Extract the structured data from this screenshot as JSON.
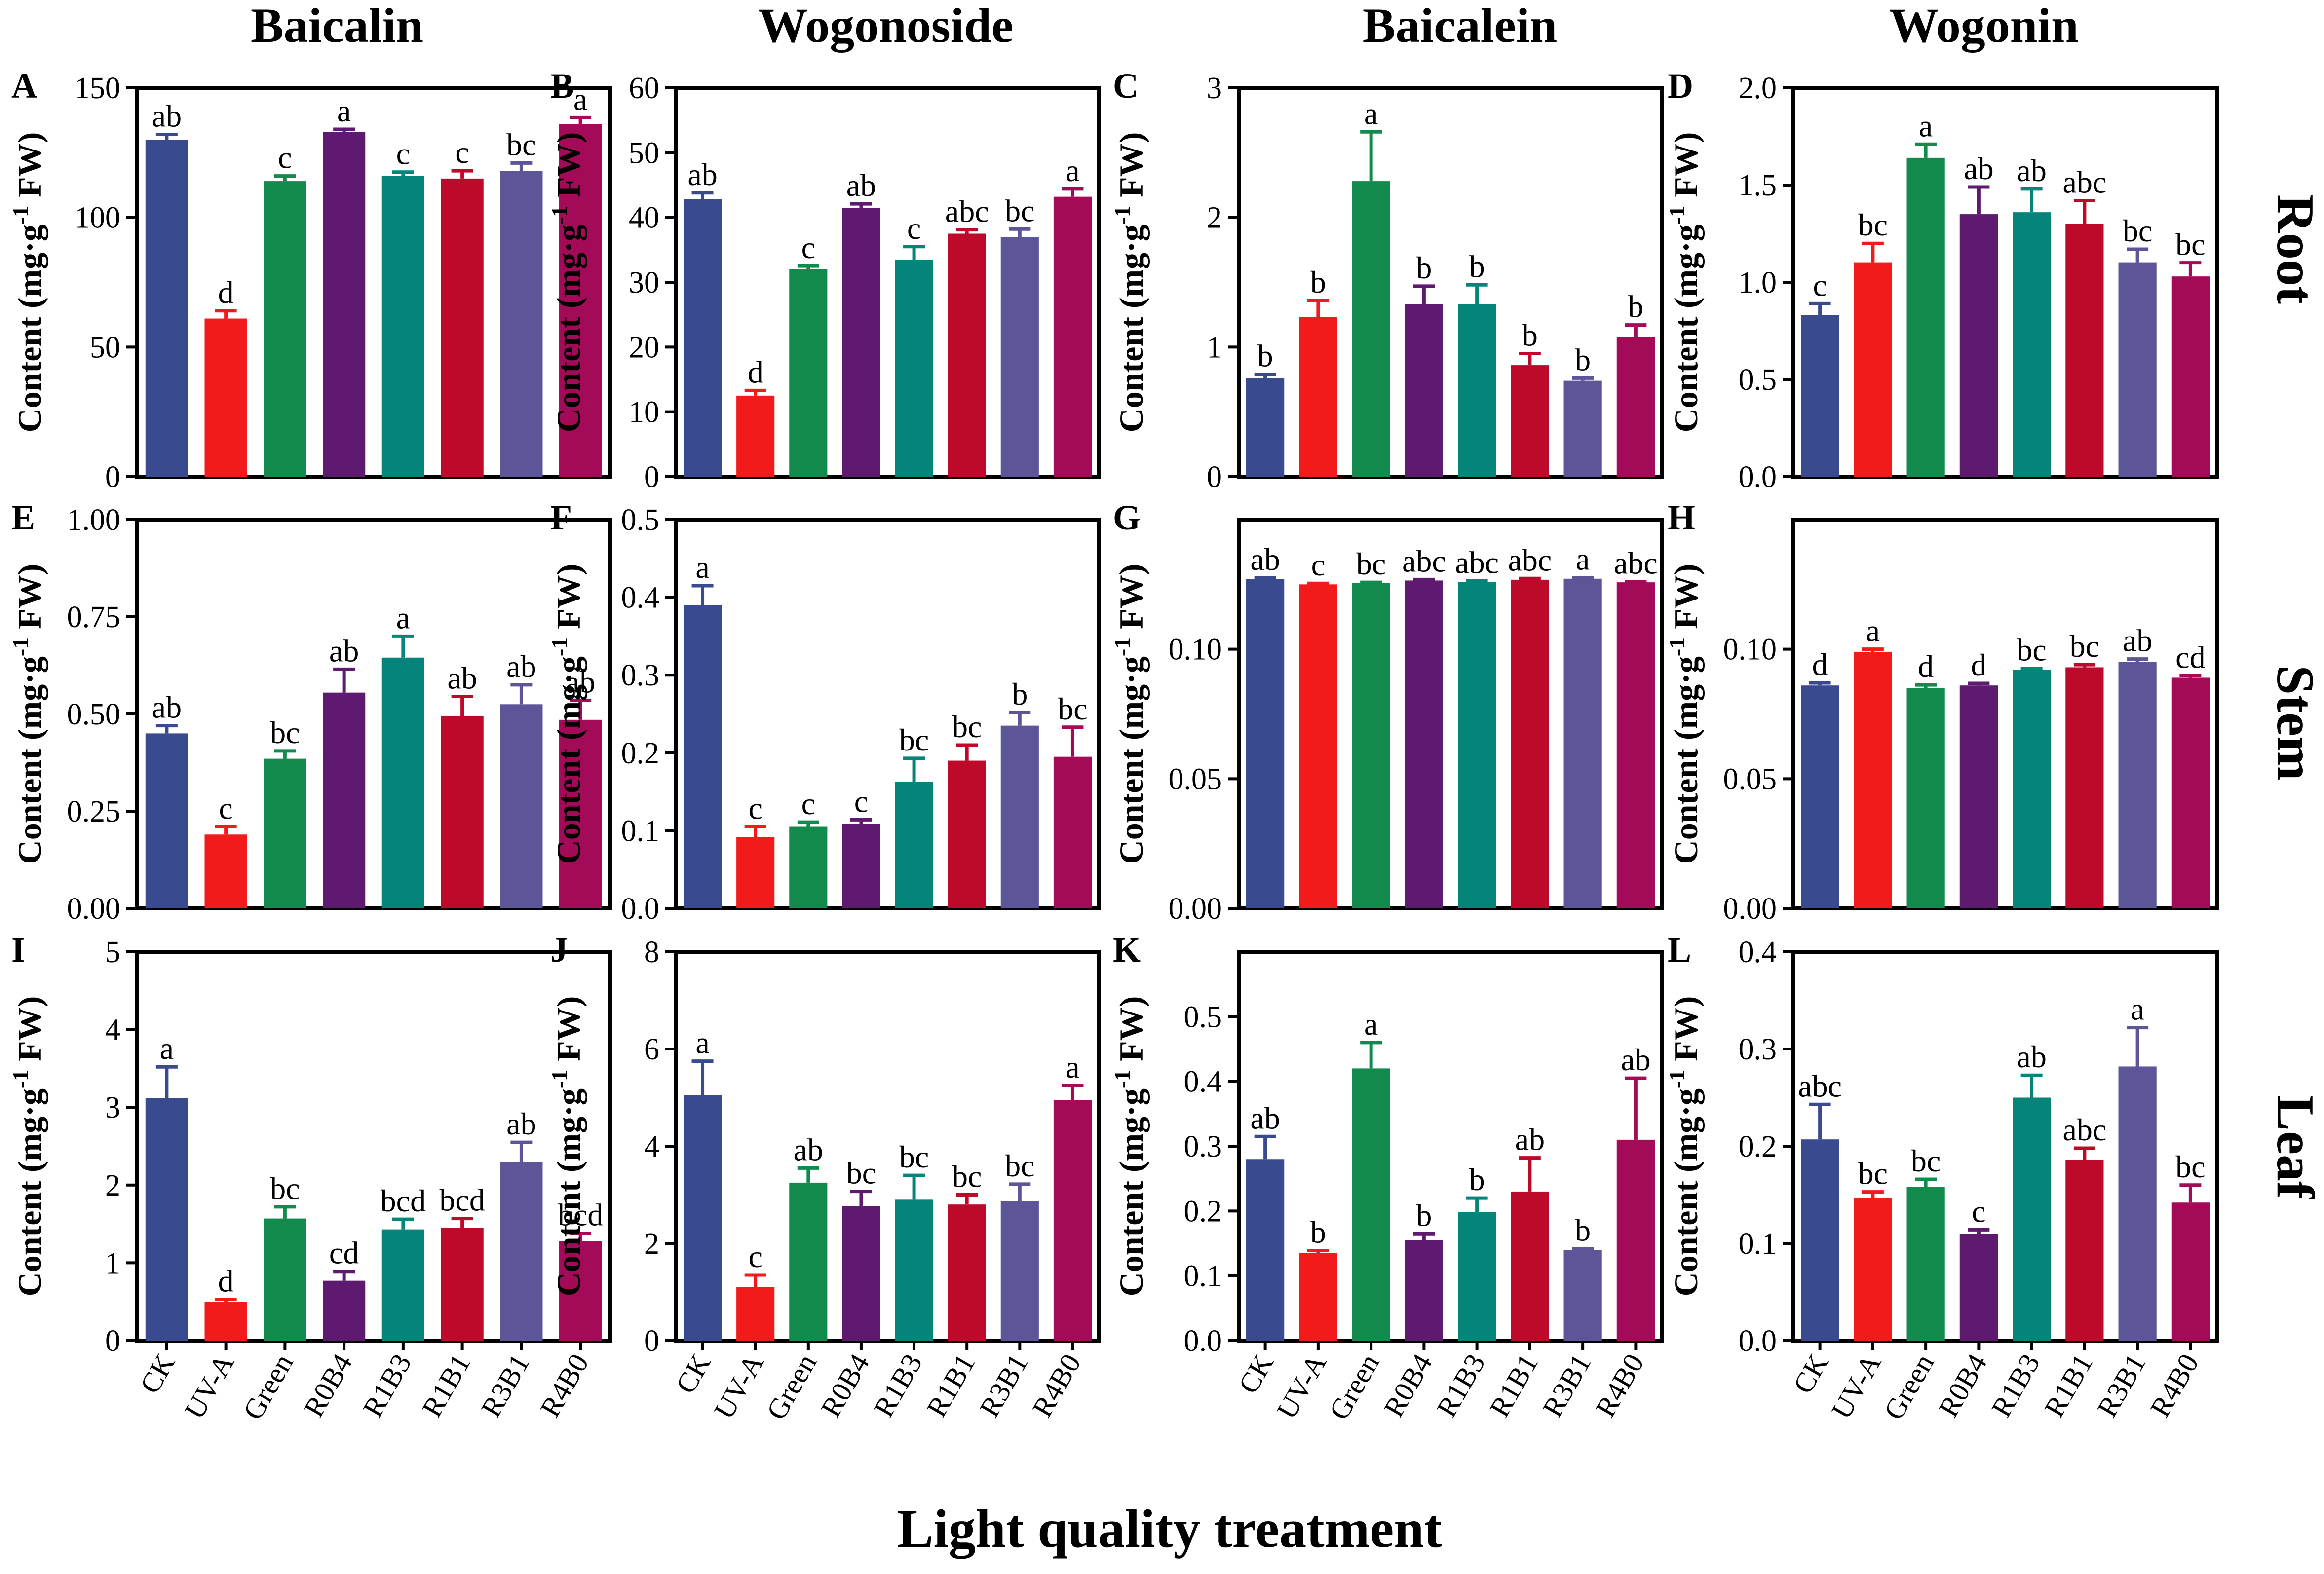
{
  "figure": {
    "x_axis_title": "Light quality treatment",
    "y_axis_label_main": "Content (mg·g",
    "y_axis_label_sup": "-1",
    "y_axis_label_end": " FW)",
    "columns": [
      "Baicalin",
      "Wogonoside",
      "Baicalein",
      "Wogonin"
    ],
    "rows": [
      "Root",
      "Stem",
      "Leaf"
    ]
  },
  "colors": {
    "CK": "#3a4a8f",
    "UV-A": "#f21a1a",
    "Green": "#128a4c",
    "R0B4": "#5e1a6e",
    "R1B3": "#05847a",
    "R1B1": "#be0a2a",
    "R3B1": "#5c5598",
    "R4B0": "#a30a58"
  },
  "chart_data": [
    {
      "type": "bar",
      "panel": "A",
      "title": "Baicalin",
      "row": "Root",
      "xlabel": "Light quality treatment",
      "ylabel": "Content (mg·g-1 FW)",
      "categories": [
        "CK",
        "UV-A",
        "Green",
        "R0B4",
        "R1B3",
        "R1B1",
        "R3B1",
        "R4B0"
      ],
      "values": [
        130,
        61,
        114,
        133,
        116,
        115,
        118,
        136
      ],
      "errors": [
        2,
        3,
        2,
        1,
        1.5,
        3,
        3,
        2.5
      ],
      "letters": [
        "ab",
        "d",
        "c",
        "a",
        "c",
        "c",
        "bc",
        "a"
      ],
      "ylim": [
        0,
        150
      ],
      "yticks": [
        "0",
        "50",
        "100",
        "150"
      ]
    },
    {
      "type": "bar",
      "panel": "B",
      "title": "Wogonoside",
      "row": "Root",
      "xlabel": "Light quality treatment",
      "ylabel": "Content (mg·g-1 FW)",
      "categories": [
        "CK",
        "UV-A",
        "Green",
        "R0B4",
        "R1B3",
        "R1B1",
        "R3B1",
        "R4B0"
      ],
      "values": [
        42.8,
        12.5,
        32,
        41.5,
        33.5,
        37.5,
        37,
        43.2
      ],
      "errors": [
        1,
        0.8,
        0.5,
        0.6,
        2,
        0.6,
        1.2,
        1.2
      ],
      "letters": [
        "ab",
        "d",
        "c",
        "ab",
        "c",
        "abc",
        "bc",
        "a"
      ],
      "ylim": [
        0,
        60
      ],
      "yticks": [
        "0",
        "10",
        "20",
        "30",
        "40",
        "50",
        "60"
      ]
    },
    {
      "type": "bar",
      "panel": "C",
      "title": "Baicalein",
      "row": "Root",
      "xlabel": "Light quality treatment",
      "ylabel": "Content (mg·g-1 FW)",
      "categories": [
        "CK",
        "UV-A",
        "Green",
        "R0B4",
        "R1B3",
        "R1B1",
        "R3B1",
        "R4B0"
      ],
      "values": [
        0.76,
        1.23,
        2.28,
        1.33,
        1.33,
        0.86,
        0.74,
        1.08
      ],
      "errors": [
        0.03,
        0.13,
        0.38,
        0.14,
        0.15,
        0.09,
        0.02,
        0.09
      ],
      "letters": [
        "b",
        "b",
        "a",
        "b",
        "b",
        "b",
        "b",
        "b"
      ],
      "ylim": [
        0,
        3
      ],
      "yticks": [
        "0",
        "1",
        "2",
        "3"
      ]
    },
    {
      "type": "bar",
      "panel": "D",
      "title": "Wogonin",
      "row": "Root",
      "xlabel": "Light quality treatment",
      "ylabel": "Content (mg·g-1 FW)",
      "categories": [
        "CK",
        "UV-A",
        "Green",
        "R0B4",
        "R1B3",
        "R1B1",
        "R3B1",
        "R4B0"
      ],
      "values": [
        0.83,
        1.1,
        1.64,
        1.35,
        1.36,
        1.3,
        1.1,
        1.03
      ],
      "errors": [
        0.06,
        0.1,
        0.07,
        0.14,
        0.12,
        0.12,
        0.07,
        0.07
      ],
      "letters": [
        "c",
        "bc",
        "a",
        "ab",
        "ab",
        "abc",
        "bc",
        "bc"
      ],
      "ylim": [
        0,
        2
      ],
      "yticks": [
        "0.0",
        "0.5",
        "1.0",
        "1.5",
        "2.0"
      ]
    },
    {
      "type": "bar",
      "panel": "E",
      "title": "Baicalin",
      "row": "Stem",
      "xlabel": "Light quality treatment",
      "ylabel": "Content (mg·g-1 FW)",
      "categories": [
        "CK",
        "UV-A",
        "Green",
        "R0B4",
        "R1B3",
        "R1B1",
        "R3B1",
        "R4B0"
      ],
      "values": [
        0.45,
        0.19,
        0.385,
        0.555,
        0.645,
        0.495,
        0.525,
        0.485
      ],
      "errors": [
        0.02,
        0.02,
        0.02,
        0.06,
        0.055,
        0.05,
        0.05,
        0.05
      ],
      "letters": [
        "ab",
        "c",
        "bc",
        "ab",
        "a",
        "ab",
        "ab",
        "ab"
      ],
      "ylim": [
        0,
        1
      ],
      "yticks": [
        "0.00",
        "0.25",
        "0.50",
        "0.75",
        "1.00"
      ]
    },
    {
      "type": "bar",
      "panel": "F",
      "title": "Wogonoside",
      "row": "Stem",
      "xlabel": "Light quality treatment",
      "ylabel": "Content (mg·g-1 FW)",
      "categories": [
        "CK",
        "UV-A",
        "Green",
        "R0B4",
        "R1B3",
        "R1B1",
        "R3B1",
        "R4B0"
      ],
      "values": [
        0.39,
        0.092,
        0.105,
        0.108,
        0.163,
        0.19,
        0.235,
        0.195
      ],
      "errors": [
        0.025,
        0.013,
        0.006,
        0.006,
        0.03,
        0.02,
        0.017,
        0.038
      ],
      "letters": [
        "a",
        "c",
        "c",
        "c",
        "bc",
        "bc",
        "b",
        "bc"
      ],
      "ylim": [
        0,
        0.5
      ],
      "yticks": [
        "0.0",
        "0.1",
        "0.2",
        "0.3",
        "0.4",
        "0.5"
      ]
    },
    {
      "type": "bar",
      "panel": "G",
      "title": "Baicalein",
      "row": "Stem",
      "xlabel": "Light quality treatment",
      "ylabel": "Content (mg·g-1 FW)",
      "categories": [
        "CK",
        "UV-A",
        "Green",
        "R0B4",
        "R1B3",
        "R1B1",
        "R3B1",
        "R4B0"
      ],
      "values": [
        0.127,
        0.125,
        0.1255,
        0.1265,
        0.126,
        0.1268,
        0.1272,
        0.1258
      ],
      "errors": [
        0.0005,
        0.0004,
        0.0003,
        0.0004,
        0.0003,
        0.0005,
        0.0004,
        0.0003
      ],
      "letters": [
        "ab",
        "c",
        "bc",
        "abc",
        "abc",
        "abc",
        "a",
        "abc"
      ],
      "ylim": [
        0,
        0.15
      ],
      "yticks": [
        "0.00",
        "0.05",
        "0.10"
      ]
    },
    {
      "type": "bar",
      "panel": "H",
      "title": "Wogonin",
      "row": "Stem",
      "xlabel": "Light quality treatment",
      "ylabel": "Content (mg·g-1 FW)",
      "categories": [
        "CK",
        "UV-A",
        "Green",
        "R0B4",
        "R1B3",
        "R1B1",
        "R3B1",
        "R4B0"
      ],
      "values": [
        0.086,
        0.099,
        0.085,
        0.086,
        0.092,
        0.093,
        0.095,
        0.089
      ],
      "errors": [
        0.001,
        0.001,
        0.0012,
        0.0008,
        0.0006,
        0.001,
        0.0012,
        0.0008
      ],
      "letters": [
        "d",
        "a",
        "d",
        "d",
        "bc",
        "bc",
        "ab",
        "cd"
      ],
      "ylim": [
        0,
        0.15
      ],
      "yticks": [
        "0.00",
        "0.05",
        "0.10"
      ]
    },
    {
      "type": "bar",
      "panel": "I",
      "title": "Baicalin",
      "row": "Leaf",
      "xlabel": "Light quality treatment",
      "ylabel": "Content (mg·g-1 FW)",
      "categories": [
        "CK",
        "UV-A",
        "Green",
        "R0B4",
        "R1B3",
        "R1B1",
        "R3B1",
        "R4B0"
      ],
      "values": [
        3.12,
        0.5,
        1.57,
        0.77,
        1.43,
        1.45,
        2.3,
        1.28
      ],
      "errors": [
        0.4,
        0.03,
        0.15,
        0.12,
        0.13,
        0.12,
        0.25,
        0.1
      ],
      "letters": [
        "a",
        "d",
        "bc",
        "cd",
        "bcd",
        "bcd",
        "ab",
        "bcd"
      ],
      "ylim": [
        0,
        5
      ],
      "yticks": [
        "0",
        "1",
        "2",
        "3",
        "4",
        "5"
      ]
    },
    {
      "type": "bar",
      "panel": "J",
      "title": "Wogonoside",
      "row": "Leaf",
      "xlabel": "Light quality treatment",
      "ylabel": "Content (mg·g-1 FW)",
      "categories": [
        "CK",
        "UV-A",
        "Green",
        "R0B4",
        "R1B3",
        "R1B1",
        "R3B1",
        "R4B0"
      ],
      "values": [
        5.05,
        1.1,
        3.25,
        2.77,
        2.9,
        2.8,
        2.87,
        4.95
      ],
      "errors": [
        0.7,
        0.25,
        0.3,
        0.3,
        0.5,
        0.2,
        0.35,
        0.3
      ],
      "letters": [
        "a",
        "c",
        "ab",
        "bc",
        "bc",
        "bc",
        "bc",
        "a"
      ],
      "ylim": [
        0,
        8
      ],
      "yticks": [
        "0",
        "2",
        "4",
        "6",
        "8"
      ]
    },
    {
      "type": "bar",
      "panel": "K",
      "title": "Baicalein",
      "row": "Leaf",
      "xlabel": "Light quality treatment",
      "ylabel": "Content (mg·g-1 FW)",
      "categories": [
        "CK",
        "UV-A",
        "Green",
        "R0B4",
        "R1B3",
        "R1B1",
        "R3B1",
        "R4B0"
      ],
      "values": [
        0.28,
        0.135,
        0.42,
        0.155,
        0.198,
        0.23,
        0.14,
        0.31
      ],
      "errors": [
        0.035,
        0.004,
        0.04,
        0.01,
        0.022,
        0.052,
        0.002,
        0.095
      ],
      "letters": [
        "ab",
        "b",
        "a",
        "b",
        "b",
        "ab",
        "b",
        "ab"
      ],
      "ylim": [
        0,
        0.6
      ],
      "yticks": [
        "0.0",
        "0.1",
        "0.2",
        "0.3",
        "0.4",
        "0.5"
      ]
    },
    {
      "type": "bar",
      "panel": "L",
      "title": "Wogonin",
      "row": "Leaf",
      "xlabel": "Light quality treatment",
      "ylabel": "Content (mg·g-1 FW)",
      "categories": [
        "CK",
        "UV-A",
        "Green",
        "R0B4",
        "R1B3",
        "R1B1",
        "R3B1",
        "R4B0"
      ],
      "values": [
        0.207,
        0.147,
        0.158,
        0.11,
        0.25,
        0.186,
        0.282,
        0.142
      ],
      "errors": [
        0.036,
        0.006,
        0.008,
        0.004,
        0.023,
        0.012,
        0.04,
        0.018
      ],
      "letters": [
        "abc",
        "bc",
        "bc",
        "c",
        "ab",
        "abc",
        "a",
        "bc"
      ],
      "ylim": [
        0,
        0.4
      ],
      "yticks": [
        "0.0",
        "0.1",
        "0.2",
        "0.3",
        "0.4"
      ]
    }
  ]
}
